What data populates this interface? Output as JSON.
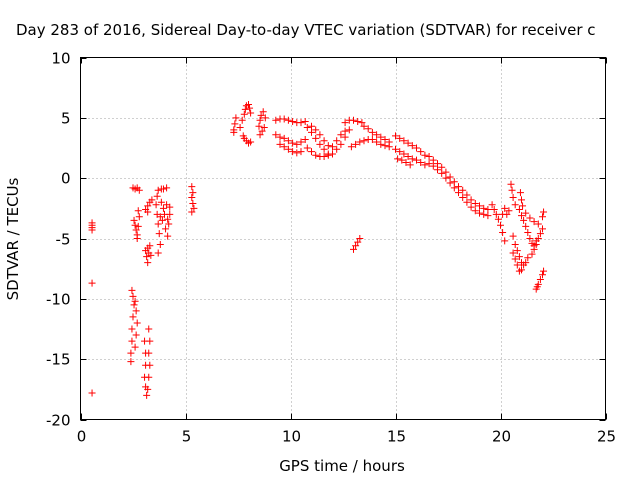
{
  "chart_data": {
    "type": "scatter",
    "title": "Day 283 of 2016, Sidereal Day-to-day VTEC variation (SDTVAR) for receiver c",
    "xlabel": "GPS time / hours",
    "ylabel": "SDTVAR / TECUs",
    "xlim": [
      0,
      25
    ],
    "ylim": [
      -20,
      10
    ],
    "xticks": [
      0,
      5,
      10,
      15,
      20,
      25
    ],
    "yticks": [
      -20,
      -15,
      -10,
      -5,
      0,
      5,
      10
    ],
    "xtick_labels": [
      "0",
      "5",
      "10",
      "15",
      "20",
      "25"
    ],
    "ytick_labels": [
      "-20",
      "-15",
      "-10",
      "-5",
      "0",
      "5",
      "10"
    ],
    "grid": true,
    "marker": "+",
    "marker_color": "#ff0000",
    "series": [
      {
        "points": [
          [
            0.55,
            -3.7
          ],
          [
            0.55,
            -3.9
          ],
          [
            0.55,
            -4.1
          ],
          [
            0.55,
            -4.3
          ],
          [
            0.55,
            -8.7
          ],
          [
            0.55,
            -17.8
          ],
          [
            2.45,
            -9.3
          ],
          [
            2.5,
            -9.8
          ],
          [
            2.55,
            -10.5
          ],
          [
            2.5,
            -11.5
          ],
          [
            2.45,
            -12.5
          ],
          [
            2.45,
            -13.5
          ],
          [
            2.4,
            -14.5
          ],
          [
            2.4,
            -15.2
          ],
          [
            2.6,
            -10.2
          ],
          [
            2.65,
            -11.0
          ],
          [
            2.7,
            -12.0
          ],
          [
            2.65,
            -13.0
          ],
          [
            2.6,
            -14.0
          ],
          [
            2.55,
            -3.5
          ],
          [
            2.6,
            -3.9
          ],
          [
            2.65,
            -4.3
          ],
          [
            2.7,
            -4.7
          ],
          [
            2.75,
            -4.0
          ],
          [
            2.8,
            -3.2
          ],
          [
            2.7,
            -5.0
          ],
          [
            2.5,
            -0.8
          ],
          [
            2.6,
            -0.9
          ],
          [
            2.7,
            -0.8
          ],
          [
            2.8,
            -1.0
          ],
          [
            2.75,
            -2.7
          ],
          [
            3.1,
            -6.0
          ],
          [
            3.15,
            -6.5
          ],
          [
            3.2,
            -7.0
          ],
          [
            3.25,
            -6.2
          ],
          [
            3.3,
            -5.6
          ],
          [
            3.35,
            -6.4
          ],
          [
            3.2,
            -5.8
          ],
          [
            3.05,
            -13.5
          ],
          [
            3.1,
            -14.5
          ],
          [
            3.1,
            -15.5
          ],
          [
            3.05,
            -16.5
          ],
          [
            3.1,
            -17.3
          ],
          [
            3.15,
            -18.0
          ],
          [
            3.25,
            -12.5
          ],
          [
            3.3,
            -13.5
          ],
          [
            3.25,
            -14.5
          ],
          [
            3.3,
            -15.5
          ],
          [
            3.25,
            -16.5
          ],
          [
            3.2,
            -17.5
          ],
          [
            3.1,
            -2.6
          ],
          [
            3.2,
            -2.3
          ],
          [
            3.3,
            -2.0
          ],
          [
            3.4,
            -1.8
          ],
          [
            3.2,
            -2.8
          ],
          [
            3.6,
            -2.2
          ],
          [
            3.65,
            -3.0
          ],
          [
            3.7,
            -3.8
          ],
          [
            3.75,
            -4.6
          ],
          [
            3.8,
            -5.5
          ],
          [
            3.7,
            -6.2
          ],
          [
            3.8,
            -3.2
          ],
          [
            3.9,
            -3.5
          ],
          [
            3.65,
            -1.5
          ],
          [
            3.7,
            -1.0
          ],
          [
            3.85,
            -0.9
          ],
          [
            3.95,
            -0.9
          ],
          [
            4.1,
            -0.8
          ],
          [
            3.85,
            -2.0
          ],
          [
            3.95,
            -2.5
          ],
          [
            4.0,
            -3.0
          ],
          [
            4.1,
            -2.2
          ],
          [
            4.15,
            -3.4
          ],
          [
            4.2,
            -3.8
          ],
          [
            4.25,
            -2.4
          ],
          [
            4.25,
            -3.0
          ],
          [
            4.05,
            -4.2
          ],
          [
            4.15,
            -4.8
          ],
          [
            5.3,
            -0.7
          ],
          [
            5.35,
            -1.2
          ],
          [
            5.3,
            -1.6
          ],
          [
            5.35,
            -2.1
          ],
          [
            5.4,
            -2.5
          ],
          [
            5.3,
            -2.8
          ],
          [
            7.3,
            4.0
          ],
          [
            7.35,
            4.5
          ],
          [
            7.4,
            5.0
          ],
          [
            7.3,
            3.8
          ],
          [
            7.6,
            4.2
          ],
          [
            7.7,
            4.8
          ],
          [
            7.8,
            5.3
          ],
          [
            7.85,
            5.7
          ],
          [
            7.9,
            6.0
          ],
          [
            8.0,
            6.1
          ],
          [
            8.05,
            5.8
          ],
          [
            8.1,
            5.4
          ],
          [
            7.8,
            3.3
          ],
          [
            7.9,
            3.1
          ],
          [
            8.0,
            2.9
          ],
          [
            8.1,
            3.0
          ],
          [
            7.75,
            3.5
          ],
          [
            8.5,
            4.3
          ],
          [
            8.55,
            4.8
          ],
          [
            8.6,
            5.2
          ],
          [
            8.7,
            5.5
          ],
          [
            8.8,
            5.0
          ],
          [
            8.75,
            4.2
          ],
          [
            8.65,
            3.9
          ],
          [
            8.55,
            3.6
          ],
          [
            9.3,
            4.8
          ],
          [
            9.5,
            4.9
          ],
          [
            9.7,
            4.9
          ],
          [
            9.9,
            4.8
          ],
          [
            10.1,
            4.7
          ],
          [
            10.3,
            4.6
          ],
          [
            10.5,
            4.6
          ],
          [
            10.7,
            4.7
          ],
          [
            9.3,
            3.6
          ],
          [
            9.5,
            3.4
          ],
          [
            9.7,
            3.3
          ],
          [
            9.9,
            3.1
          ],
          [
            10.1,
            2.9
          ],
          [
            10.3,
            2.8
          ],
          [
            10.5,
            3.0
          ],
          [
            10.7,
            3.2
          ],
          [
            9.5,
            2.8
          ],
          [
            9.7,
            2.6
          ],
          [
            9.9,
            2.4
          ],
          [
            10.1,
            2.2
          ],
          [
            10.3,
            2.1
          ],
          [
            10.5,
            2.2
          ],
          [
            10.8,
            4.2
          ],
          [
            11.0,
            3.8
          ],
          [
            11.2,
            3.3
          ],
          [
            11.4,
            2.8
          ],
          [
            11.6,
            2.4
          ],
          [
            11.8,
            2.0
          ],
          [
            12.0,
            2.0
          ],
          [
            12.2,
            2.4
          ],
          [
            12.4,
            2.8
          ],
          [
            12.6,
            3.4
          ],
          [
            12.8,
            4.0
          ],
          [
            10.8,
            2.5
          ],
          [
            11.0,
            2.2
          ],
          [
            11.2,
            1.9
          ],
          [
            11.4,
            1.8
          ],
          [
            11.6,
            1.8
          ],
          [
            11.8,
            1.9
          ],
          [
            12.0,
            2.6
          ],
          [
            12.2,
            3.1
          ],
          [
            12.4,
            3.6
          ],
          [
            12.6,
            3.9
          ],
          [
            11.0,
            4.3
          ],
          [
            11.2,
            4.0
          ],
          [
            11.4,
            3.6
          ],
          [
            11.6,
            3.1
          ],
          [
            11.8,
            2.7
          ],
          [
            12.6,
            4.6
          ],
          [
            12.8,
            4.8
          ],
          [
            13.0,
            4.8
          ],
          [
            13.2,
            4.7
          ],
          [
            13.4,
            4.6
          ],
          [
            12.9,
            2.6
          ],
          [
            13.1,
            2.8
          ],
          [
            13.3,
            3.0
          ],
          [
            13.5,
            3.1
          ],
          [
            13.7,
            3.2
          ],
          [
            13.9,
            3.2
          ],
          [
            14.1,
            3.0
          ],
          [
            14.3,
            2.8
          ],
          [
            14.5,
            2.7
          ],
          [
            14.7,
            2.6
          ],
          [
            13.5,
            4.3
          ],
          [
            13.7,
            4.1
          ],
          [
            13.9,
            3.8
          ],
          [
            14.1,
            3.6
          ],
          [
            14.3,
            3.4
          ],
          [
            14.5,
            3.2
          ],
          [
            14.7,
            3.0
          ],
          [
            13.0,
            -5.9
          ],
          [
            13.1,
            -5.6
          ],
          [
            13.2,
            -5.3
          ],
          [
            13.3,
            -5.0
          ],
          [
            15.0,
            3.5
          ],
          [
            15.2,
            3.3
          ],
          [
            15.4,
            3.1
          ],
          [
            15.6,
            2.9
          ],
          [
            15.8,
            2.7
          ],
          [
            16.0,
            2.5
          ],
          [
            16.2,
            2.2
          ],
          [
            16.4,
            1.9
          ],
          [
            15.0,
            2.4
          ],
          [
            15.2,
            2.2
          ],
          [
            15.4,
            2.0
          ],
          [
            15.6,
            1.8
          ],
          [
            15.8,
            1.6
          ],
          [
            16.0,
            1.5
          ],
          [
            16.2,
            1.3
          ],
          [
            16.4,
            1.1
          ],
          [
            15.1,
            1.6
          ],
          [
            15.3,
            1.5
          ],
          [
            15.5,
            1.3
          ],
          [
            15.7,
            1.1
          ],
          [
            16.6,
            1.8
          ],
          [
            16.8,
            1.5
          ],
          [
            17.0,
            1.2
          ],
          [
            17.2,
            0.9
          ],
          [
            17.4,
            0.5
          ],
          [
            17.6,
            0.1
          ],
          [
            17.8,
            -0.3
          ],
          [
            18.0,
            -0.7
          ],
          [
            16.6,
            1.2
          ],
          [
            16.8,
            1.0
          ],
          [
            17.0,
            0.7
          ],
          [
            17.2,
            0.4
          ],
          [
            17.4,
            0.0
          ],
          [
            17.6,
            -0.4
          ],
          [
            17.8,
            -0.8
          ],
          [
            18.0,
            -1.2
          ],
          [
            18.2,
            -1.0
          ],
          [
            18.4,
            -1.4
          ],
          [
            18.6,
            -1.8
          ],
          [
            18.8,
            -2.1
          ],
          [
            19.0,
            -2.3
          ],
          [
            19.2,
            -2.5
          ],
          [
            19.4,
            -2.6
          ],
          [
            18.2,
            -1.6
          ],
          [
            18.4,
            -2.0
          ],
          [
            18.6,
            -2.4
          ],
          [
            18.8,
            -2.7
          ],
          [
            19.0,
            -2.9
          ],
          [
            19.2,
            -3.0
          ],
          [
            19.4,
            -3.1
          ],
          [
            19.6,
            -2.2
          ],
          [
            19.7,
            -2.6
          ],
          [
            19.8,
            -3.0
          ],
          [
            19.9,
            -3.4
          ],
          [
            20.0,
            -3.9
          ],
          [
            20.1,
            -4.5
          ],
          [
            20.2,
            -5.2
          ],
          [
            20.1,
            -3.0
          ],
          [
            20.2,
            -2.5
          ],
          [
            20.3,
            -3.0
          ],
          [
            20.4,
            -2.7
          ],
          [
            20.5,
            -0.5
          ],
          [
            20.55,
            -1.0
          ],
          [
            20.6,
            -1.6
          ],
          [
            20.7,
            -2.2
          ],
          [
            20.6,
            -4.8
          ],
          [
            20.7,
            -5.5
          ],
          [
            20.8,
            -6.0
          ],
          [
            20.9,
            -6.5
          ],
          [
            21.0,
            -7.0
          ],
          [
            21.1,
            -7.2
          ],
          [
            21.2,
            -7.0
          ],
          [
            21.3,
            -6.6
          ],
          [
            20.6,
            -6.2
          ],
          [
            20.7,
            -6.7
          ],
          [
            20.8,
            -7.2
          ],
          [
            20.9,
            -7.7
          ],
          [
            21.0,
            -7.6
          ],
          [
            20.9,
            -2.6
          ],
          [
            21.0,
            -3.1
          ],
          [
            21.1,
            -3.5
          ],
          [
            21.2,
            -4.0
          ],
          [
            21.3,
            -4.5
          ],
          [
            21.4,
            -5.0
          ],
          [
            21.5,
            -5.4
          ],
          [
            21.6,
            -5.6
          ],
          [
            21.7,
            -5.2
          ],
          [
            21.2,
            -2.9
          ],
          [
            21.4,
            -3.3
          ],
          [
            21.6,
            -3.6
          ],
          [
            21.8,
            -3.8
          ],
          [
            22.0,
            -3.2
          ],
          [
            22.05,
            -2.8
          ],
          [
            21.5,
            -6.3
          ],
          [
            21.6,
            -5.9
          ],
          [
            21.7,
            -5.5
          ],
          [
            21.8,
            -5.0
          ],
          [
            21.9,
            -4.6
          ],
          [
            22.0,
            -4.2
          ],
          [
            21.0,
            -1.8
          ],
          [
            21.05,
            -2.3
          ],
          [
            20.95,
            -1.2
          ],
          [
            21.7,
            -9.2
          ],
          [
            21.8,
            -8.8
          ],
          [
            21.9,
            -8.4
          ],
          [
            22.0,
            -8.0
          ],
          [
            22.05,
            -7.7
          ],
          [
            21.75,
            -9.0
          ]
        ]
      }
    ]
  }
}
